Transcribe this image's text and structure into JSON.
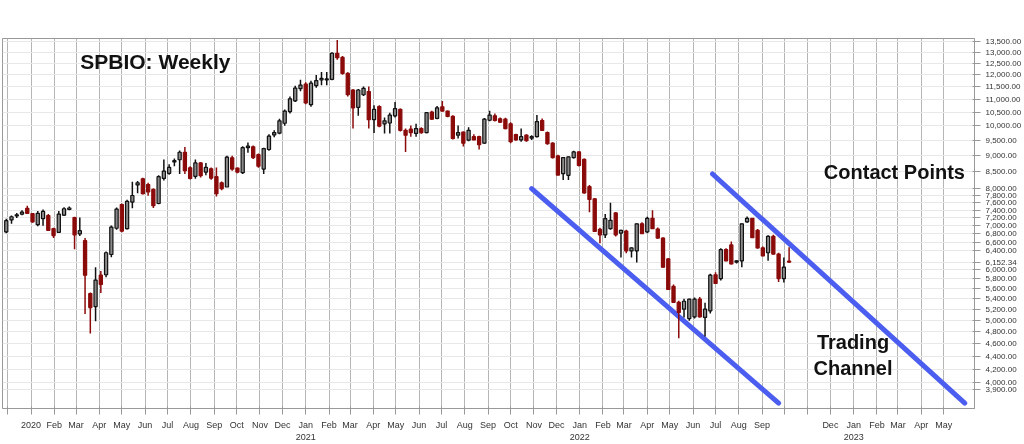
{
  "chart_data": {
    "type": "candlestick",
    "title": "SPBIO:  Weekly",
    "annotations": [
      "Contact Points",
      "Trading Channel"
    ],
    "x": [
      "2019-11-29",
      "2019-12-06",
      "2019-12-13",
      "2019-12-20",
      "2019-12-27",
      "2020-01-03",
      "2020-01-10",
      "2020-01-17",
      "2020-01-24",
      "2020-01-31",
      "2020-02-07",
      "2020-02-14",
      "2020-02-21",
      "2020-02-28",
      "2020-03-06",
      "2020-03-13",
      "2020-03-20",
      "2020-03-27",
      "2020-04-03",
      "2020-04-10",
      "2020-04-17",
      "2020-04-24",
      "2020-05-01",
      "2020-05-08",
      "2020-05-15",
      "2020-05-22",
      "2020-05-29",
      "2020-06-05",
      "2020-06-12",
      "2020-06-19",
      "2020-06-26",
      "2020-07-03",
      "2020-07-10",
      "2020-07-17",
      "2020-07-24",
      "2020-07-31",
      "2020-08-07",
      "2020-08-14",
      "2020-08-21",
      "2020-08-28",
      "2020-09-04",
      "2020-09-11",
      "2020-09-18",
      "2020-09-25",
      "2020-10-02",
      "2020-10-09",
      "2020-10-16",
      "2020-10-23",
      "2020-10-30",
      "2020-11-06",
      "2020-11-13",
      "2020-11-20",
      "2020-11-27",
      "2020-12-04",
      "2020-12-11",
      "2020-12-18",
      "2020-12-25",
      "2021-01-01",
      "2021-01-08",
      "2021-01-15",
      "2021-01-22",
      "2021-01-29",
      "2021-02-05",
      "2021-02-12",
      "2021-02-19",
      "2021-02-26",
      "2021-03-05",
      "2021-03-12",
      "2021-03-19",
      "2021-03-26",
      "2021-04-02",
      "2021-04-09",
      "2021-04-16",
      "2021-04-23",
      "2021-04-30",
      "2021-05-07",
      "2021-05-14",
      "2021-05-21",
      "2021-05-28",
      "2021-06-04",
      "2021-06-11",
      "2021-06-18",
      "2021-06-25",
      "2021-07-02",
      "2021-07-09",
      "2021-07-16",
      "2021-07-23",
      "2021-07-30",
      "2021-08-06",
      "2021-08-13",
      "2021-08-20",
      "2021-08-27",
      "2021-09-03",
      "2021-09-10",
      "2021-09-17",
      "2021-09-24",
      "2021-10-01",
      "2021-10-08",
      "2021-10-15",
      "2021-10-22",
      "2021-10-29",
      "2021-11-05",
      "2021-11-12",
      "2021-11-19",
      "2021-11-26",
      "2021-12-03",
      "2021-12-10",
      "2021-12-17",
      "2021-12-24",
      "2021-12-31",
      "2022-01-07",
      "2022-01-14",
      "2022-01-21",
      "2022-01-28",
      "2022-02-04",
      "2022-02-11",
      "2022-02-18",
      "2022-02-25",
      "2022-03-04",
      "2022-03-11",
      "2022-03-18",
      "2022-03-25",
      "2022-04-01",
      "2022-04-08",
      "2022-04-15",
      "2022-04-22",
      "2022-04-29",
      "2022-05-06",
      "2022-05-13",
      "2022-05-20",
      "2022-05-27",
      "2022-06-03",
      "2022-06-10",
      "2022-06-17",
      "2022-06-24",
      "2022-07-01",
      "2022-07-08",
      "2022-07-15",
      "2022-07-22",
      "2022-07-29",
      "2022-08-05",
      "2022-08-12",
      "2022-08-19",
      "2022-08-26",
      "2022-09-02",
      "2022-09-09",
      "2022-09-16",
      "2022-09-23",
      "2022-09-30",
      "2022-10-07"
    ],
    "ohlc": [
      [
        6850,
        7180,
        6820,
        7130
      ],
      [
        7150,
        7260,
        7050,
        7230
      ],
      [
        7250,
        7330,
        7200,
        7280
      ],
      [
        7300,
        7400,
        7270,
        7350
      ],
      [
        7450,
        7520,
        7300,
        7320
      ],
      [
        7310,
        7330,
        7080,
        7100
      ],
      [
        7030,
        7380,
        6990,
        7320
      ],
      [
        7180,
        7420,
        7000,
        7370
      ],
      [
        7260,
        7300,
        6870,
        6890
      ],
      [
        6930,
        6950,
        6700,
        6760
      ],
      [
        6840,
        7380,
        6830,
        7300
      ],
      [
        7270,
        7480,
        7250,
        7440
      ],
      [
        7420,
        7500,
        7400,
        7460
      ],
      [
        7210,
        7230,
        6440,
        6780
      ],
      [
        6800,
        7210,
        6750,
        6880
      ],
      [
        6640,
        6700,
        5110,
        5870
      ],
      [
        5500,
        5520,
        4770,
        5230
      ],
      [
        5250,
        6040,
        4980,
        5770
      ],
      [
        5870,
        5960,
        5510,
        5680
      ],
      [
        5880,
        6390,
        5830,
        6360
      ],
      [
        6320,
        7010,
        6260,
        6970
      ],
      [
        6940,
        7470,
        6900,
        7430
      ],
      [
        7550,
        7580,
        6840,
        6870
      ],
      [
        6930,
        7680,
        6910,
        7640
      ],
      [
        7620,
        8190,
        7450,
        7800
      ],
      [
        8100,
        8210,
        7860,
        8160
      ],
      [
        8280,
        8310,
        7830,
        7850
      ],
      [
        8110,
        8160,
        7790,
        7900
      ],
      [
        7970,
        8000,
        7460,
        7520
      ],
      [
        7580,
        8380,
        7560,
        8340
      ],
      [
        8290,
        8870,
        8230,
        8510
      ],
      [
        8440,
        8720,
        8400,
        8620
      ],
      [
        8790,
        8900,
        8660,
        8830
      ],
      [
        8860,
        9160,
        8420,
        9100
      ],
      [
        9100,
        9270,
        8420,
        8520
      ],
      [
        8610,
        8660,
        8260,
        8290
      ],
      [
        8350,
        8870,
        8280,
        8760
      ],
      [
        8760,
        8780,
        8320,
        8370
      ],
      [
        8480,
        8760,
        8380,
        8620
      ],
      [
        8580,
        8620,
        8250,
        8300
      ],
      [
        8340,
        8620,
        7770,
        7850
      ],
      [
        8160,
        8200,
        7950,
        7990
      ],
      [
        8040,
        8990,
        8040,
        8940
      ],
      [
        8920,
        8990,
        8520,
        8570
      ],
      [
        8600,
        8620,
        8440,
        8480
      ],
      [
        8460,
        9300,
        8420,
        9250
      ],
      [
        9250,
        9420,
        9080,
        9300
      ],
      [
        9280,
        9320,
        8880,
        8930
      ],
      [
        9020,
        9060,
        8610,
        8660
      ],
      [
        8570,
        9250,
        8420,
        9220
      ],
      [
        9190,
        9700,
        9150,
        9640
      ],
      [
        9680,
        9840,
        9600,
        9760
      ],
      [
        9740,
        10250,
        9700,
        10180
      ],
      [
        10090,
        10600,
        10000,
        10540
      ],
      [
        10520,
        11100,
        10450,
        11010
      ],
      [
        10930,
        11530,
        10880,
        11440
      ],
      [
        11420,
        11780,
        11310,
        11560
      ],
      [
        11600,
        11680,
        10800,
        10850
      ],
      [
        10780,
        11740,
        10700,
        11640
      ],
      [
        11540,
        11980,
        11450,
        11750
      ],
      [
        11780,
        12110,
        11550,
        11840
      ],
      [
        11780,
        12110,
        11550,
        11820
      ],
      [
        11800,
        13000,
        11760,
        12950
      ],
      [
        12950,
        13580,
        12650,
        12750
      ],
      [
        12760,
        12830,
        12000,
        12050
      ],
      [
        12050,
        12100,
        11100,
        11170
      ],
      [
        11360,
        11400,
        9900,
        10660
      ],
      [
        10680,
        11400,
        10360,
        11360
      ],
      [
        11170,
        11500,
        11120,
        11430
      ],
      [
        11300,
        11500,
        9900,
        10220
      ],
      [
        10220,
        10760,
        9750,
        10600
      ],
      [
        10710,
        10760,
        9950,
        9990
      ],
      [
        10070,
        10300,
        9730,
        10180
      ],
      [
        10100,
        10480,
        9730,
        10390
      ],
      [
        10360,
        10880,
        10300,
        10630
      ],
      [
        10600,
        10640,
        9800,
        9840
      ],
      [
        9840,
        9900,
        9110,
        9670
      ],
      [
        9880,
        10010,
        9620,
        9760
      ],
      [
        9730,
        10070,
        9620,
        9900
      ],
      [
        9900,
        9950,
        9720,
        9760
      ],
      [
        9760,
        10500,
        9740,
        10480
      ],
      [
        10500,
        10550,
        10220,
        10240
      ],
      [
        10270,
        10730,
        10240,
        10660
      ],
      [
        10700,
        10920,
        10520,
        10540
      ],
      [
        10540,
        10560,
        10310,
        10340
      ],
      [
        10340,
        10380,
        9520,
        9560
      ],
      [
        9670,
        10010,
        9560,
        9760
      ],
      [
        9780,
        9800,
        9290,
        9400
      ],
      [
        9500,
        9950,
        9460,
        9840
      ],
      [
        9620,
        9700,
        9500,
        9510
      ],
      [
        9620,
        9650,
        9190,
        9350
      ],
      [
        9400,
        10280,
        9380,
        10240
      ],
      [
        10200,
        10550,
        10160,
        10390
      ],
      [
        10360,
        10450,
        10150,
        10190
      ],
      [
        10250,
        10300,
        10100,
        10130
      ],
      [
        10240,
        10290,
        9880,
        9900
      ],
      [
        10070,
        10130,
        9400,
        9450
      ],
      [
        9690,
        9720,
        9480,
        9510
      ],
      [
        9510,
        9900,
        9450,
        9620
      ],
      [
        9670,
        9700,
        9450,
        9480
      ],
      [
        9570,
        9670,
        9510,
        9620
      ],
      [
        9620,
        10390,
        9590,
        10150
      ],
      [
        10190,
        10260,
        9820,
        9840
      ],
      [
        9760,
        9800,
        9350,
        9380
      ],
      [
        9400,
        9430,
        8900,
        8930
      ],
      [
        8980,
        9020,
        8380,
        8390
      ],
      [
        8430,
        8930,
        8240,
        8930
      ],
      [
        8380,
        8960,
        8240,
        8950
      ],
      [
        8930,
        9150,
        8900,
        9110
      ],
      [
        9110,
        9130,
        8650,
        8680
      ],
      [
        8870,
        8900,
        7850,
        7870
      ],
      [
        8050,
        8100,
        7345,
        7690
      ],
      [
        7710,
        7730,
        6850,
        6860
      ],
      [
        6910,
        6950,
        6580,
        6780
      ],
      [
        6780,
        7300,
        6700,
        7180
      ],
      [
        6930,
        7600,
        6900,
        7140
      ],
      [
        7330,
        7350,
        6740,
        6780
      ],
      [
        6820,
        6900,
        6250,
        6890
      ],
      [
        6870,
        6900,
        6350,
        6400
      ],
      [
        6400,
        6480,
        6250,
        6470
      ],
      [
        6400,
        7060,
        6140,
        7050
      ],
      [
        7050,
        7090,
        6800,
        6810
      ],
      [
        6850,
        7230,
        6820,
        7190
      ],
      [
        7190,
        7400,
        6920,
        6930
      ],
      [
        6920,
        6960,
        6690,
        6700
      ],
      [
        6700,
        6720,
        6030,
        6040
      ],
      [
        6220,
        6240,
        5570,
        5580
      ],
      [
        5640,
        5680,
        5320,
        5330
      ],
      [
        5330,
        5360,
        4690,
        5140
      ],
      [
        5200,
        5400,
        5050,
        5350
      ],
      [
        5030,
        5400,
        4990,
        5390
      ],
      [
        5060,
        5420,
        5030,
        5390
      ],
      [
        5390,
        5430,
        5050,
        5060
      ],
      [
        5050,
        5320,
        4720,
        5200
      ],
      [
        5170,
        5900,
        5120,
        5870
      ],
      [
        5880,
        5930,
        5690,
        5700
      ],
      [
        5800,
        6460,
        5760,
        6430
      ],
      [
        6430,
        6460,
        6170,
        6180
      ],
      [
        6540,
        6620,
        6100,
        6110
      ],
      [
        6150,
        6190,
        6120,
        6180
      ],
      [
        6180,
        7060,
        6040,
        7050
      ],
      [
        7100,
        7240,
        7080,
        7190
      ],
      [
        7190,
        7200,
        6700,
        6710
      ],
      [
        6890,
        6920,
        6450,
        6470
      ],
      [
        6470,
        6500,
        6280,
        6290
      ],
      [
        6360,
        6770,
        6180,
        6740
      ],
      [
        6740,
        6780,
        6320,
        6330
      ],
      [
        6330,
        6360,
        5730,
        5800
      ],
      [
        5800,
        6250,
        5720,
        6040
      ],
      [
        6171.19,
        6484.89,
        6132.44,
        6152.34
      ]
    ],
    "series": [
      {
        "type": "line",
        "color": "#4b5ef0",
        "x": [
          "2021-10-29",
          "2022-09-23"
        ],
        "values": [
          7990,
          3720
        ]
      },
      {
        "type": "line",
        "color": "#4b5ef0",
        "x": [
          "2022-06-27",
          "2023-05-29"
        ],
        "values": [
          8420,
          3720
        ]
      }
    ],
    "log": true,
    "grid": true,
    "xlim": [
      "2019-11-24",
      "2023-06-11"
    ],
    "xticks": [
      {
        "value": "2019-12-01",
        "label": null
      },
      {
        "value": "2020-01-01",
        "label": "2020"
      },
      {
        "value": "2020-02-01",
        "label": "Feb"
      },
      {
        "value": "2020-03-01",
        "label": "Mar"
      },
      {
        "value": "2020-04-01",
        "label": "Apr"
      },
      {
        "value": "2020-05-01",
        "label": "May"
      },
      {
        "value": "2020-06-01",
        "label": "Jun"
      },
      {
        "value": "2020-07-01",
        "label": "Jul"
      },
      {
        "value": "2020-08-01",
        "label": "Aug"
      },
      {
        "value": "2020-09-01",
        "label": "Sep"
      },
      {
        "value": "2020-10-01",
        "label": "Oct"
      },
      {
        "value": "2020-11-01",
        "label": "Nov"
      },
      {
        "value": "2020-12-01",
        "label": "Dec"
      },
      {
        "value": "2021-01-01",
        "label": "Jan\n2021"
      },
      {
        "value": "2021-02-01",
        "label": "Feb"
      },
      {
        "value": "2021-03-01",
        "label": "Mar"
      },
      {
        "value": "2021-04-01",
        "label": "Apr"
      },
      {
        "value": "2021-05-01",
        "label": "May"
      },
      {
        "value": "2021-06-01",
        "label": "Jun"
      },
      {
        "value": "2021-07-01",
        "label": "Jul"
      },
      {
        "value": "2021-08-01",
        "label": "Aug"
      },
      {
        "value": "2021-09-01",
        "label": "Sep"
      },
      {
        "value": "2021-10-01",
        "label": "Oct"
      },
      {
        "value": "2021-11-01",
        "label": "Nov"
      },
      {
        "value": "2021-12-01",
        "label": "Dec"
      },
      {
        "value": "2022-01-01",
        "label": "Jan\n2022"
      },
      {
        "value": "2022-02-01",
        "label": "Feb"
      },
      {
        "value": "2022-03-01",
        "label": "Mar"
      },
      {
        "value": "2022-04-01",
        "label": "Apr"
      },
      {
        "value": "2022-05-01",
        "label": "May"
      },
      {
        "value": "2022-06-01",
        "label": "Jun"
      },
      {
        "value": "2022-07-01",
        "label": "Jul"
      },
      {
        "value": "2022-08-01",
        "label": "Aug"
      },
      {
        "value": "2022-09-01",
        "label": "Sep"
      },
      {
        "value": "2022-10-01",
        "label": null
      },
      {
        "value": "2022-11-01",
        "label": null
      },
      {
        "value": "2022-12-01",
        "label": "Dec"
      },
      {
        "value": "2023-01-01",
        "label": "Jan\n2023"
      },
      {
        "value": "2023-02-01",
        "label": "Feb"
      },
      {
        "value": "2023-03-01",
        "label": "Mar"
      },
      {
        "value": "2023-04-01",
        "label": "Apr"
      },
      {
        "value": "2023-05-01",
        "label": "May"
      }
    ],
    "ylim": [
      3650,
      13650
    ],
    "yticks": [
      {
        "value": 13500,
        "label": "13,500.00"
      },
      {
        "value": 13000,
        "label": "13,000.00"
      },
      {
        "value": 12500,
        "label": "12,500.00"
      },
      {
        "value": 12000,
        "label": "12,000.00"
      },
      {
        "value": 11500,
        "label": "11,500.00"
      },
      {
        "value": 11000,
        "label": "11,000.00"
      },
      {
        "value": 10500,
        "label": "10,500.00"
      },
      {
        "value": 10000,
        "label": "10,000.00"
      },
      {
        "value": 9500,
        "label": "9,500.00"
      },
      {
        "value": 9000,
        "label": "9,000.00"
      },
      {
        "value": 8500,
        "label": "8,500.00"
      },
      {
        "value": 8000,
        "label": "8,000.00"
      },
      {
        "value": 7800,
        "label": "7,800.00"
      },
      {
        "value": 7600,
        "label": "7,600.00"
      },
      {
        "value": 7400,
        "label": "7,400.00"
      },
      {
        "value": 7200,
        "label": "7,200.00"
      },
      {
        "value": 7000,
        "label": "7,000.00"
      },
      {
        "value": 6800,
        "label": "6,800.00"
      },
      {
        "value": 6600,
        "label": "6,600.00"
      },
      {
        "value": 6400,
        "label": "6,400.00"
      },
      {
        "value": 6152.34,
        "label": "6,152.34"
      },
      {
        "value": 6000,
        "label": "6,000.00"
      },
      {
        "value": 5800,
        "label": "5,800.00"
      },
      {
        "value": 5600,
        "label": "5,600.00"
      },
      {
        "value": 5400,
        "label": "5,400.00"
      },
      {
        "value": 5200,
        "label": "5,200.00"
      },
      {
        "value": 5000,
        "label": "5,000.00"
      },
      {
        "value": 4800,
        "label": "4,800.00"
      },
      {
        "value": 4600,
        "label": "4,600.00"
      },
      {
        "value": 4400,
        "label": "4,400.00"
      },
      {
        "value": 4200,
        "label": "4,200.00"
      },
      {
        "value": 4000,
        "label": "4,000.00"
      },
      {
        "value": 3900,
        "label": "3,900.00"
      }
    ]
  }
}
